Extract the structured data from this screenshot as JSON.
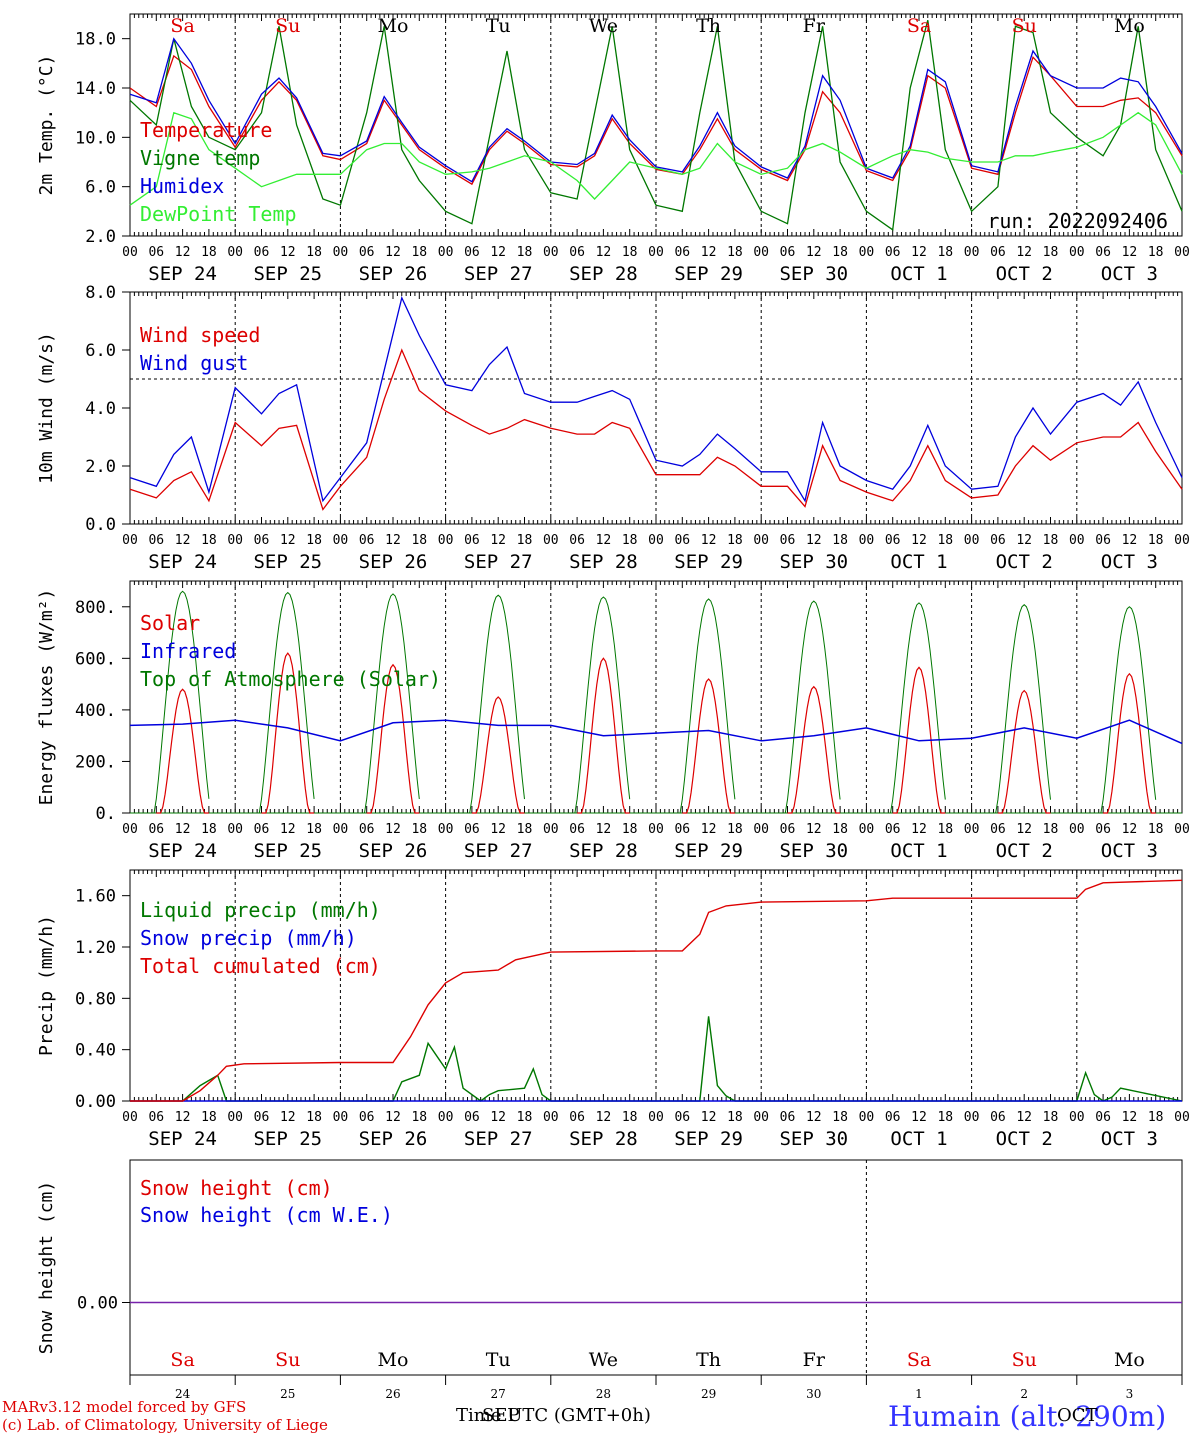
{
  "days": {
    "dates": [
      "SEP 24",
      "SEP 25",
      "SEP 26",
      "SEP 27",
      "SEP 28",
      "SEP 29",
      "SEP 30",
      "OCT  1",
      "OCT  2",
      "OCT  3"
    ],
    "dow": [
      "Sa",
      "Su",
      "Mo",
      "Tu",
      "We",
      "Th",
      "Fr",
      "Sa",
      "Su",
      "Mo"
    ],
    "dow_colors": [
      "#dd0000",
      "#dd0000",
      "#000000",
      "#000000",
      "#000000",
      "#000000",
      "#000000",
      "#dd0000",
      "#dd0000",
      "#000000"
    ],
    "day_numbers": [
      "24",
      "25",
      "26",
      "27",
      "28",
      "29",
      "30",
      "1",
      "2",
      "3"
    ],
    "hour_ticks": [
      "00",
      "06",
      "12",
      "18"
    ],
    "final_hour": "00"
  },
  "footer": {
    "model_line": "MARv3.12 model forced by GFS",
    "credit_line": "(c) Lab. of Climatology, University of Liege",
    "x_title": "Time UTC (GMT+0h)",
    "month_overlay_1": "SEP",
    "month_overlay_2": "OCT",
    "station": "Humain (alt. 290m)"
  },
  "chart_data": [
    {
      "type": "line",
      "ylabel": "2m Temp. (°C)",
      "ylim": [
        2.0,
        20.0
      ],
      "yticks": [
        "2.0",
        "6.0",
        "10.0",
        "14.0",
        "18.0"
      ],
      "annotation": "run: 2022092406",
      "x_hours": [
        0,
        6,
        10,
        14,
        18,
        24,
        30,
        34,
        38,
        44,
        48,
        54,
        58,
        62,
        66,
        72,
        78,
        82,
        86,
        90,
        96,
        102,
        106,
        110,
        114,
        120,
        126,
        130,
        134,
        138,
        144,
        150,
        154,
        158,
        162,
        168,
        174,
        178,
        182,
        186,
        192,
        198,
        202,
        206,
        210,
        216,
        222,
        226,
        230,
        234,
        240
      ],
      "series": [
        {
          "name": "Temperature",
          "color": "#dd0000",
          "values": [
            14,
            12.5,
            16.6,
            15.5,
            12.5,
            9.2,
            13,
            14.5,
            13,
            8.5,
            8.2,
            9.5,
            13,
            11,
            9,
            7.5,
            6.2,
            9,
            10.5,
            9.5,
            7.8,
            7.6,
            8.5,
            11.5,
            9.5,
            7.4,
            7,
            9,
            11.5,
            9,
            7.4,
            6.5,
            9,
            13.7,
            12,
            7.3,
            6.5,
            9,
            15,
            14,
            7.5,
            7,
            12,
            16.5,
            15,
            12.5,
            12.5,
            13,
            13.2,
            12,
            8.5
          ]
        },
        {
          "name": "Vigne temp",
          "color": "#007700",
          "values": [
            13,
            11,
            18,
            12.5,
            10,
            9,
            12,
            19,
            11,
            5,
            4.5,
            12,
            19,
            9,
            6.5,
            4,
            3,
            10,
            17,
            9,
            5.5,
            5,
            12,
            19,
            9,
            4.5,
            4,
            12,
            19,
            8,
            4,
            3,
            12,
            19,
            8,
            4,
            2.5,
            14,
            19.5,
            9,
            4,
            6,
            19,
            18.5,
            12,
            10,
            8.5,
            11,
            19,
            9,
            4
          ]
        },
        {
          "name": "Humidex",
          "color": "#0000dd",
          "values": [
            13.5,
            12.8,
            18,
            16,
            13,
            9.5,
            13.5,
            14.8,
            13.2,
            8.7,
            8.5,
            9.7,
            13.3,
            11.2,
            9.2,
            7.7,
            6.4,
            9.2,
            10.7,
            9.7,
            8,
            7.8,
            8.7,
            11.8,
            9.8,
            7.6,
            7.2,
            9.3,
            12,
            9.3,
            7.6,
            6.7,
            9.3,
            15,
            13,
            7.5,
            6.7,
            9.3,
            15.5,
            14.5,
            7.7,
            7.2,
            12.5,
            17,
            15,
            14,
            14,
            14.8,
            14.5,
            12.5,
            8.7
          ]
        },
        {
          "name": "DewPoint Temp",
          "color": "#33ee33",
          "values": [
            4.5,
            6,
            12,
            11.5,
            9,
            7.5,
            6,
            6.5,
            7,
            7,
            7,
            9,
            9.5,
            9.5,
            8,
            7,
            7.2,
            7.5,
            8,
            8.5,
            8,
            6.5,
            5,
            6.5,
            8,
            7.5,
            7,
            7.5,
            9.5,
            8,
            7,
            7.5,
            9,
            9.5,
            8.8,
            7.5,
            8.5,
            9,
            8.8,
            8.3,
            8,
            8,
            8.5,
            8.5,
            8.8,
            9.2,
            10,
            11,
            12,
            11,
            7
          ]
        }
      ]
    },
    {
      "type": "line",
      "ylabel": "10m Wind (m/s)",
      "ylim": [
        0.0,
        8.0
      ],
      "yticks": [
        "0.0",
        "2.0",
        "4.0",
        "6.0",
        "8.0"
      ],
      "ref_line": 5.0,
      "x_hours": [
        0,
        6,
        10,
        14,
        18,
        24,
        30,
        34,
        38,
        44,
        48,
        54,
        58,
        62,
        66,
        72,
        78,
        82,
        86,
        90,
        96,
        102,
        106,
        110,
        114,
        120,
        126,
        130,
        134,
        138,
        144,
        150,
        154,
        158,
        162,
        168,
        174,
        178,
        182,
        186,
        192,
        198,
        202,
        206,
        210,
        216,
        222,
        226,
        230,
        234,
        240
      ],
      "series": [
        {
          "name": "Wind speed",
          "color": "#dd0000",
          "values": [
            1.2,
            0.9,
            1.5,
            1.8,
            0.8,
            3.5,
            2.7,
            3.3,
            3.4,
            0.5,
            1.3,
            2.3,
            4.3,
            6,
            4.6,
            3.9,
            3.4,
            3.1,
            3.3,
            3.6,
            3.3,
            3.1,
            3.1,
            3.5,
            3.3,
            1.7,
            1.7,
            1.7,
            2.3,
            2,
            1.3,
            1.3,
            0.6,
            2.7,
            1.5,
            1.1,
            0.8,
            1.5,
            2.7,
            1.5,
            0.9,
            1.0,
            2.0,
            2.7,
            2.2,
            2.8,
            3.0,
            3.0,
            3.5,
            2.5,
            1.2
          ]
        },
        {
          "name": "Wind gust",
          "color": "#0000dd",
          "values": [
            1.6,
            1.3,
            2.4,
            3.0,
            1.1,
            4.7,
            3.8,
            4.5,
            4.8,
            0.8,
            1.6,
            2.8,
            5.3,
            7.8,
            6.5,
            4.8,
            4.6,
            5.5,
            6.1,
            4.5,
            4.2,
            4.2,
            4.4,
            4.6,
            4.3,
            2.2,
            2.0,
            2.4,
            3.1,
            2.6,
            1.8,
            1.8,
            0.8,
            3.5,
            2.0,
            1.5,
            1.2,
            2.0,
            3.4,
            2.0,
            1.2,
            1.3,
            3.0,
            4.0,
            3.1,
            4.2,
            4.5,
            4.1,
            4.9,
            3.5,
            1.6
          ]
        }
      ]
    },
    {
      "type": "line",
      "ylabel": "Energy fluxes (W/m²)",
      "ylim": [
        0,
        900
      ],
      "yticks": [
        "0.",
        "200.",
        "400.",
        "600.",
        "800."
      ],
      "series": [
        {
          "name": "Solar",
          "color": "#dd0000",
          "day_peaks": [
            480,
            620,
            575,
            450,
            600,
            520,
            490,
            565,
            475,
            540
          ]
        },
        {
          "name": "Infrared",
          "color": "#0000dd",
          "x_hours": [
            0,
            12,
            24,
            36,
            48,
            60,
            72,
            84,
            96,
            108,
            120,
            132,
            144,
            156,
            168,
            180,
            192,
            204,
            216,
            228,
            240
          ],
          "values": [
            340,
            345,
            360,
            330,
            280,
            350,
            360,
            340,
            340,
            300,
            310,
            320,
            280,
            300,
            330,
            280,
            290,
            330,
            290,
            360,
            270
          ]
        },
        {
          "name": "Top of Atmosphere (Solar)",
          "color": "#007700",
          "day_peaks": [
            860,
            855,
            850,
            845,
            838,
            830,
            822,
            815,
            808,
            800
          ]
        }
      ]
    },
    {
      "type": "line",
      "ylabel": "Precip (mm/h)",
      "ylim": [
        0.0,
        1.8
      ],
      "yticks": [
        "0.00",
        "0.40",
        "0.80",
        "1.20",
        "1.60"
      ],
      "series": [
        {
          "name": "Liquid precip (mm/h)",
          "color": "#007700",
          "x_hours": [
            0,
            12,
            16,
            20,
            22,
            24,
            60,
            62,
            66,
            68,
            72,
            74,
            76,
            80,
            82,
            84,
            90,
            92,
            94,
            96,
            102,
            130,
            132,
            134,
            136,
            138,
            216,
            218,
            220,
            222,
            224,
            226,
            240
          ],
          "values": [
            0,
            0,
            0.12,
            0.2,
            0,
            0,
            0,
            0.15,
            0.2,
            0.45,
            0.25,
            0.42,
            0.1,
            0,
            0.05,
            0.08,
            0.1,
            0.25,
            0.05,
            0,
            0,
            0,
            0.66,
            0.12,
            0.04,
            0,
            0,
            0.22,
            0.05,
            0,
            0.03,
            0.1,
            0
          ]
        },
        {
          "name": "Snow precip (mm/h)",
          "color": "#0000dd",
          "x_hours": [
            0,
            240
          ],
          "values": [
            0,
            0
          ]
        },
        {
          "name": "Total cumulated (cm)",
          "color": "#dd0000",
          "x_hours": [
            0,
            12,
            16,
            20,
            22,
            26,
            48,
            60,
            64,
            68,
            72,
            76,
            84,
            88,
            96,
            120,
            126,
            130,
            132,
            136,
            144,
            168,
            174,
            216,
            218,
            222,
            240
          ],
          "values": [
            0,
            0,
            0.08,
            0.2,
            0.27,
            0.29,
            0.3,
            0.3,
            0.5,
            0.75,
            0.92,
            1.0,
            1.02,
            1.1,
            1.16,
            1.17,
            1.17,
            1.3,
            1.47,
            1.52,
            1.55,
            1.56,
            1.58,
            1.58,
            1.65,
            1.7,
            1.72
          ]
        }
      ]
    },
    {
      "type": "line",
      "ylabel": "Snow height (cm)",
      "ytick": "0.00",
      "series": [
        {
          "name": "Snow height (cm)",
          "color": "#dd0000",
          "values": [
            0,
            0
          ]
        },
        {
          "name": "Snow height (cm W.E.)",
          "color": "#0000dd",
          "values": [
            0,
            0
          ]
        }
      ]
    }
  ]
}
